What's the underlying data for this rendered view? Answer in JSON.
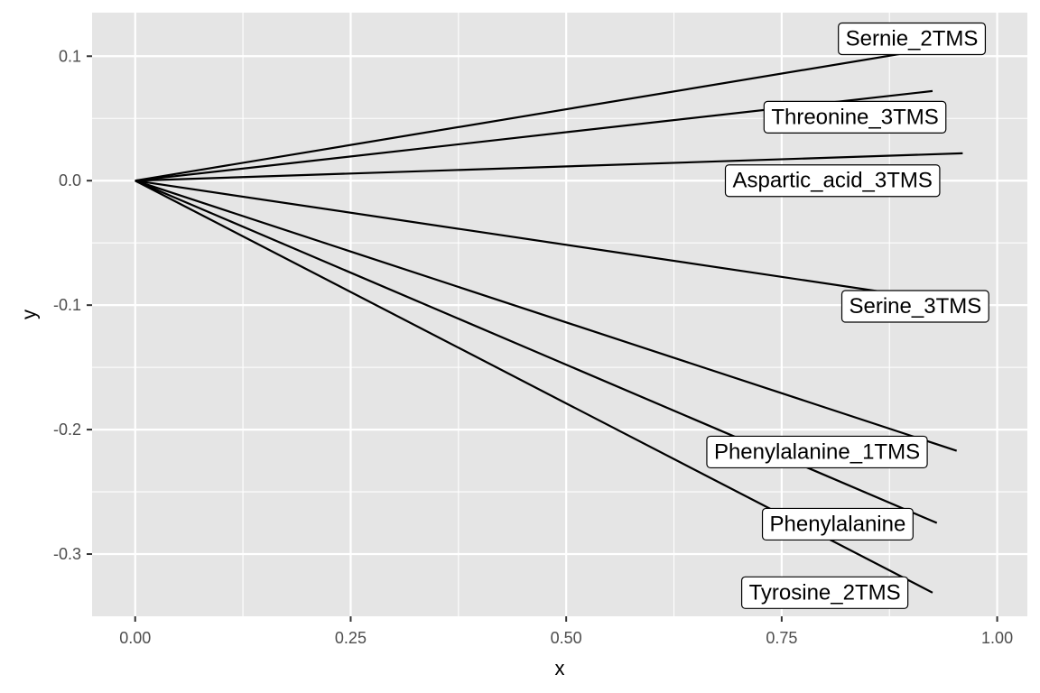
{
  "chart_data": {
    "type": "line",
    "xlabel": "x",
    "ylabel": "y",
    "xlim": [
      -0.05,
      1.035
    ],
    "ylim": [
      -0.35,
      0.135
    ],
    "x_ticks": [
      0,
      0.25,
      0.5,
      0.75,
      1.0
    ],
    "x_tick_labels": [
      "0.00",
      "0.25",
      "0.50",
      "0.75",
      "1.00"
    ],
    "y_ticks": [
      -0.3,
      -0.2,
      -0.1,
      0.0,
      0.1
    ],
    "y_tick_labels": [
      "-0.3",
      "-0.2",
      "-0.1",
      "0.0",
      "0.1"
    ],
    "grid": true,
    "background": "#e5e5e5",
    "series": [
      {
        "name": "Sernie_2TMS",
        "x": [
          0,
          0.985
        ],
        "y": [
          0,
          0.113
        ]
      },
      {
        "name": "Threonine_3TMS",
        "x": [
          0,
          0.925
        ],
        "y": [
          0,
          0.072
        ]
      },
      {
        "name": "Aspartic_acid_3TMS",
        "x": [
          0,
          0.96
        ],
        "y": [
          0,
          0.022
        ]
      },
      {
        "name": "Serine_3TMS",
        "x": [
          0,
          0.98
        ],
        "y": [
          0,
          -0.101
        ]
      },
      {
        "name": "Phenylalanine_1TMS",
        "x": [
          0,
          0.953
        ],
        "y": [
          0,
          -0.217
        ]
      },
      {
        "name": "Phenylalanine",
        "x": [
          0,
          0.93
        ],
        "y": [
          0,
          -0.275
        ]
      },
      {
        "name": "Tyrosine_2TMS",
        "x": [
          0,
          0.925
        ],
        "y": [
          0,
          -0.331
        ]
      }
    ],
    "annotations": [
      {
        "text": "Sernie_2TMS",
        "x": 0.901,
        "y": 0.114
      },
      {
        "text": "Threonine_3TMS",
        "x": 0.835,
        "y": 0.051
      },
      {
        "text": "Aspartic_acid_3TMS",
        "x": 0.809,
        "y": 0.0
      },
      {
        "text": "Serine_3TMS",
        "x": 0.905,
        "y": -0.101
      },
      {
        "text": "Phenylalanine_1TMS",
        "x": 0.791,
        "y": -0.218
      },
      {
        "text": "Phenylalanine",
        "x": 0.815,
        "y": -0.276
      },
      {
        "text": "Tyrosine_2TMS",
        "x": 0.8,
        "y": -0.331
      }
    ]
  }
}
